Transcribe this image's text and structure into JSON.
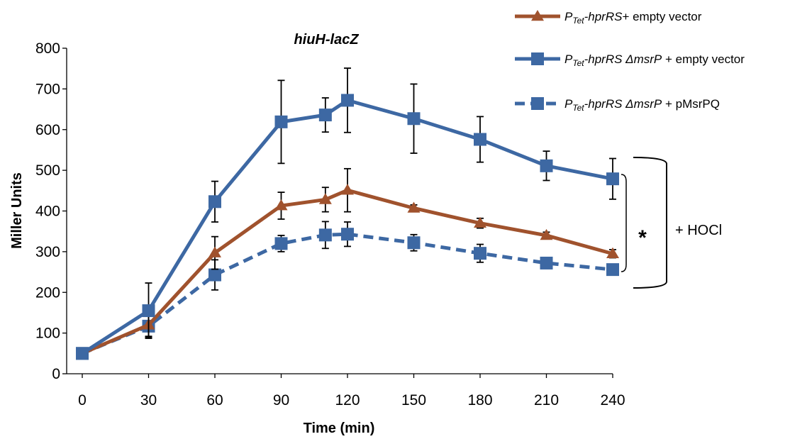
{
  "chart_data": {
    "type": "line",
    "title": "hiuH-lacZ",
    "xlabel": "Time (min)",
    "ylabel": "Miller Units",
    "x": [
      0,
      30,
      60,
      90,
      110,
      120,
      150,
      180,
      210,
      240
    ],
    "x_ticks": [
      0,
      30,
      60,
      90,
      120,
      150,
      180,
      210,
      240
    ],
    "y_ticks": [
      0,
      100,
      200,
      300,
      400,
      500,
      600,
      700,
      800
    ],
    "xlim": [
      0,
      240
    ],
    "ylim": [
      0,
      800
    ],
    "grid": false,
    "legend_position": "top-right",
    "series": [
      {
        "name": "PTet-hprRS+ empty vector",
        "legend_parts": [
          {
            "text": "P",
            "style": "it"
          },
          {
            "text": "Tet",
            "style": "sub"
          },
          {
            "text": "-hprRS",
            "style": "it"
          },
          {
            "text": "+ empty vector",
            "style": ""
          }
        ],
        "color": "#A0522D",
        "marker": "triangle",
        "dash": false,
        "values": [
          50,
          120,
          297,
          413,
          428,
          451,
          407,
          370,
          340,
          295
        ],
        "errors": [
          5,
          30,
          40,
          33,
          30,
          53,
          8,
          12,
          8,
          10
        ]
      },
      {
        "name": "PTet-hprRS ΔmsrP + empty vector",
        "legend_parts": [
          {
            "text": "P",
            "style": "it"
          },
          {
            "text": "Tet",
            "style": "sub"
          },
          {
            "text": "-hprRS  ΔmsrP",
            "style": "it"
          },
          {
            "text": " + empty vector",
            "style": ""
          }
        ],
        "color": "#3D68A3",
        "marker": "square",
        "dash": false,
        "values": [
          50,
          155,
          423,
          619,
          636,
          672,
          627,
          576,
          511,
          479
        ],
        "errors": [
          5,
          68,
          50,
          102,
          42,
          79,
          85,
          56,
          36,
          50
        ]
      },
      {
        "name": "PTet-hprRS ΔmsrP + pMsrPQ",
        "legend_parts": [
          {
            "text": "P",
            "style": "it"
          },
          {
            "text": "Tet",
            "style": "sub"
          },
          {
            "text": "-hprRS  ΔmsrP",
            "style": "it"
          },
          {
            "text": " + pMsrPQ",
            "style": ""
          }
        ],
        "color": "#3D68A3",
        "marker": "square",
        "dash": true,
        "values": [
          50,
          117,
          243,
          320,
          341,
          343,
          322,
          296,
          272,
          256
        ],
        "errors": [
          5,
          25,
          37,
          20,
          33,
          30,
          20,
          22,
          5,
          12
        ]
      }
    ],
    "annotations": [
      {
        "text": "*"
      },
      {
        "text": "+ HOCl"
      }
    ]
  }
}
